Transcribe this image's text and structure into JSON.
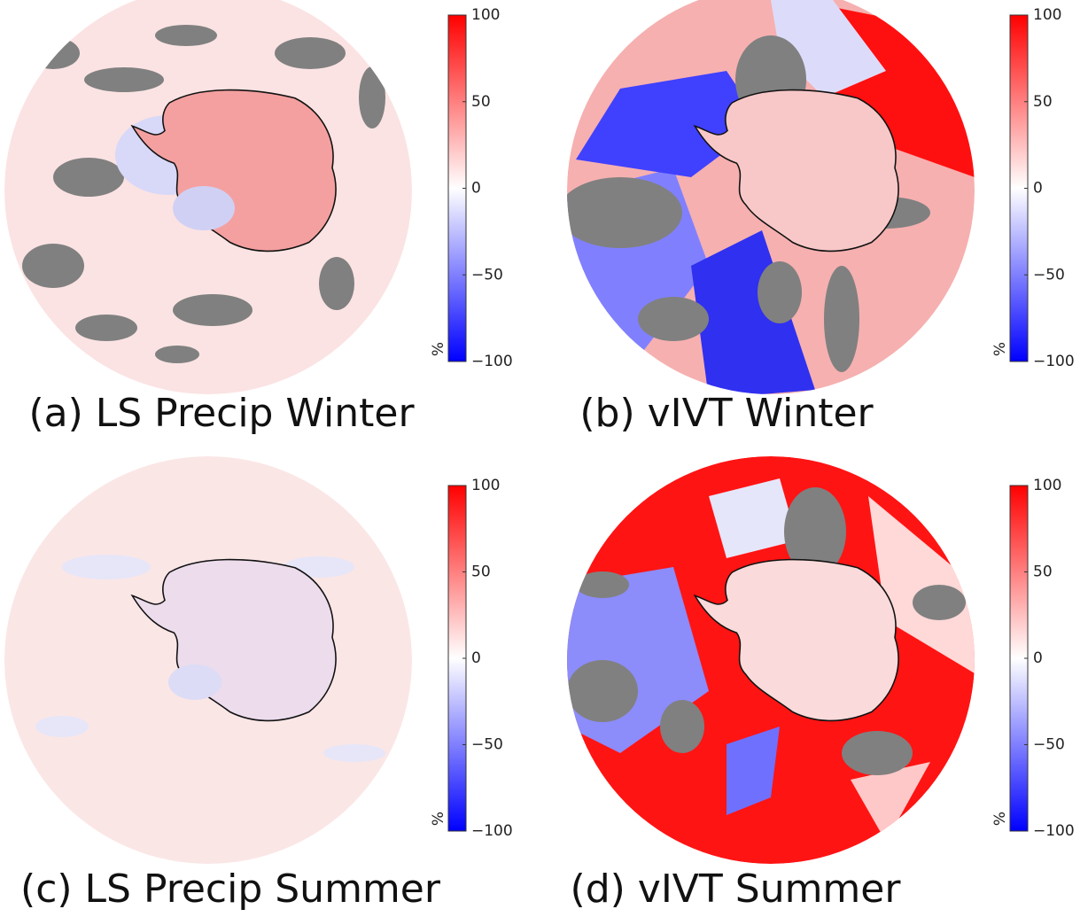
{
  "panels": [
    {
      "title": "(a) LS Precip Winter",
      "colorbar": {
        "label": "%",
        "lim": [
          -100,
          100
        ],
        "ticks": [
          100,
          50,
          0,
          {
            "value": -50,
            "label": "−50"
          },
          {
            "value": -100,
            "label": "−100"
          }
        ]
      }
    },
    {
      "title": "(b) vIVT Winter",
      "colorbar": {
        "label": "%",
        "lim": [
          -100,
          100
        ],
        "ticks": [
          100,
          50,
          0,
          {
            "value": -50,
            "label": "−50"
          },
          {
            "value": -100,
            "label": "−100"
          }
        ]
      }
    },
    {
      "title": "(c) LS Precip Summer",
      "colorbar": {
        "label": "%",
        "lim": [
          -100,
          100
        ],
        "ticks": [
          100,
          50,
          0,
          {
            "value": -50,
            "label": "−50"
          },
          {
            "value": -100,
            "label": "−100"
          }
        ]
      }
    },
    {
      "title": "(d) vIVT Summer",
      "colorbar": {
        "label": "%",
        "lim": [
          -100,
          100
        ],
        "ticks": [
          100,
          50,
          0,
          {
            "value": -50,
            "label": "−50"
          },
          {
            "value": -100,
            "label": "−100"
          }
        ]
      }
    }
  ]
}
